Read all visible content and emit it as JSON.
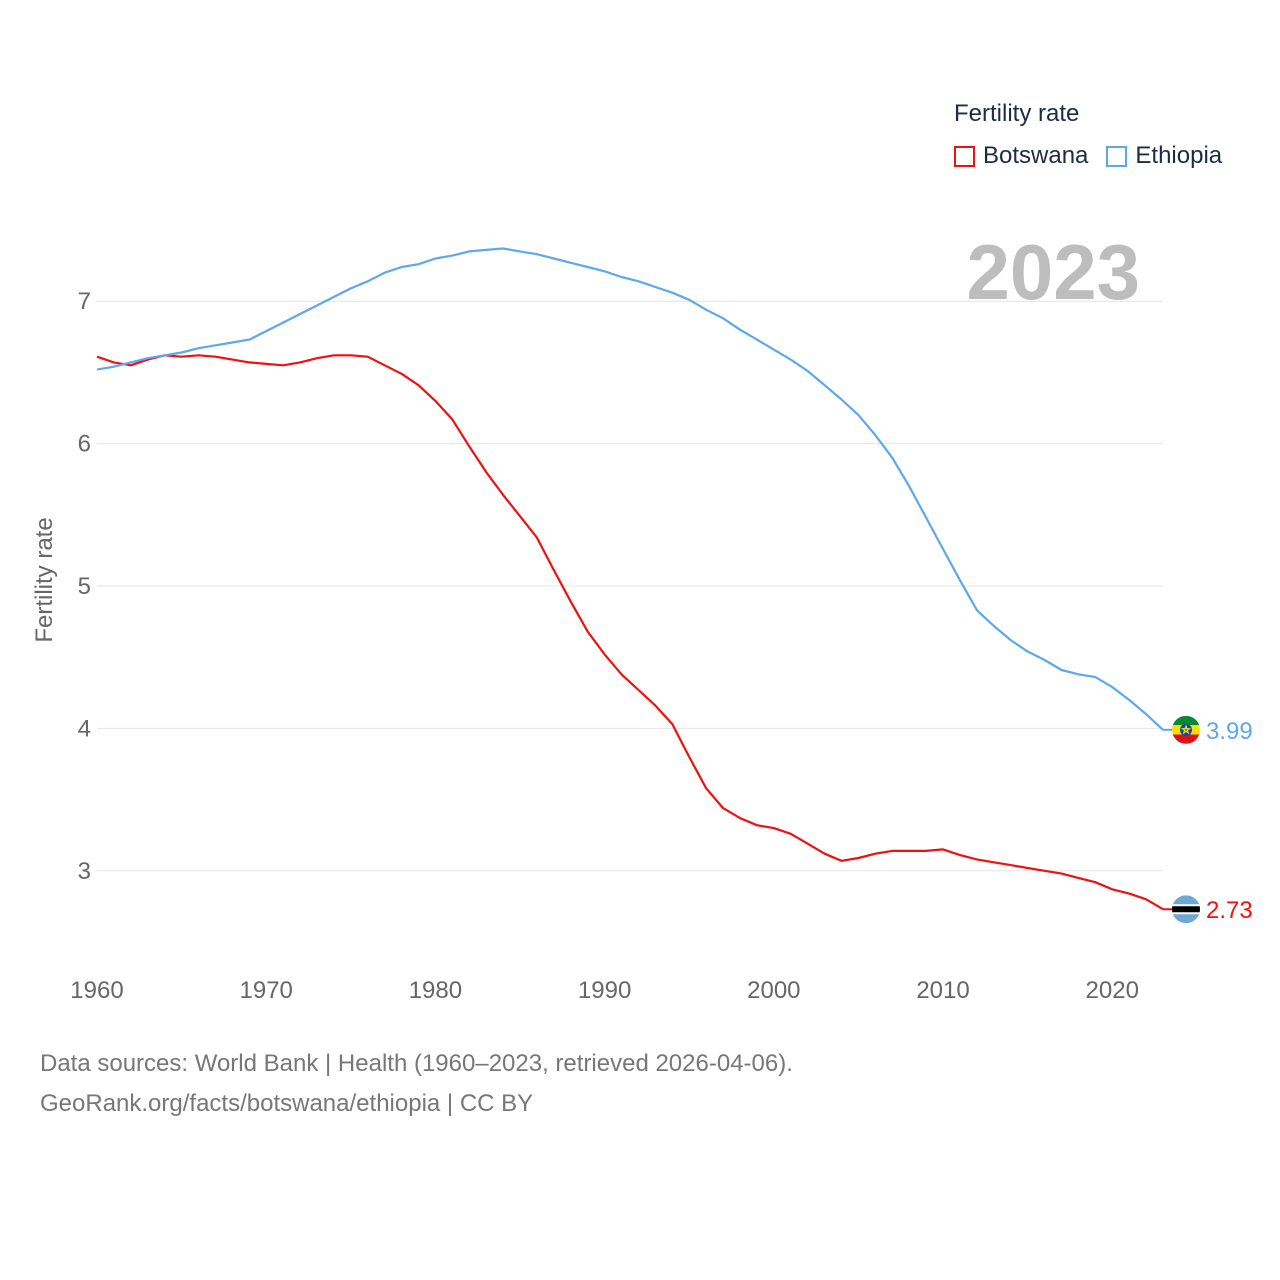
{
  "legend": {
    "title": "Fertility rate",
    "items": [
      {
        "label": "Botswana",
        "color": "#ee1111"
      },
      {
        "label": "Ethiopia",
        "color": "#5ea8ea"
      }
    ]
  },
  "chart_data": {
    "type": "line",
    "year_label": "2023",
    "ylabel": "Fertility rate",
    "xlabel": "",
    "xlim": [
      1960,
      2023
    ],
    "ylim": [
      2.5,
      7.5
    ],
    "x_ticks": [
      "1960",
      "1970",
      "1980",
      "1990",
      "2000",
      "2010",
      "2020"
    ],
    "y_ticks": [
      "3",
      "4",
      "5",
      "6",
      "7"
    ],
    "x": [
      1960,
      1961,
      1962,
      1963,
      1964,
      1965,
      1966,
      1967,
      1968,
      1969,
      1970,
      1971,
      1972,
      1973,
      1974,
      1975,
      1976,
      1977,
      1978,
      1979,
      1980,
      1981,
      1982,
      1983,
      1984,
      1985,
      1986,
      1987,
      1988,
      1989,
      1990,
      1991,
      1992,
      1993,
      1994,
      1995,
      1996,
      1997,
      1998,
      1999,
      2000,
      2001,
      2002,
      2003,
      2004,
      2005,
      2006,
      2007,
      2008,
      2009,
      2010,
      2011,
      2012,
      2013,
      2014,
      2015,
      2016,
      2017,
      2018,
      2019,
      2020,
      2021,
      2022,
      2023
    ],
    "series": [
      {
        "name": "Botswana",
        "color": "#ee1111",
        "end_label": "2.73",
        "values": [
          6.61,
          6.57,
          6.55,
          6.59,
          6.62,
          6.61,
          6.62,
          6.61,
          6.59,
          6.57,
          6.56,
          6.55,
          6.57,
          6.6,
          6.62,
          6.62,
          6.61,
          6.55,
          6.49,
          6.41,
          6.3,
          6.17,
          5.98,
          5.8,
          5.64,
          5.49,
          5.34,
          5.11,
          4.89,
          4.68,
          4.52,
          4.38,
          4.27,
          4.16,
          4.03,
          3.8,
          3.58,
          3.44,
          3.37,
          3.32,
          3.3,
          3.26,
          3.19,
          3.12,
          3.07,
          3.09,
          3.12,
          3.14,
          3.14,
          3.14,
          3.15,
          3.11,
          3.08,
          3.06,
          3.04,
          3.02,
          3.0,
          2.98,
          2.95,
          2.92,
          2.87,
          2.84,
          2.8,
          2.73
        ]
      },
      {
        "name": "Ethiopia",
        "color": "#5ea8ea",
        "end_label": "3.99",
        "values": [
          6.52,
          6.54,
          6.57,
          6.6,
          6.62,
          6.64,
          6.67,
          6.69,
          6.71,
          6.73,
          6.79,
          6.85,
          6.91,
          6.97,
          7.03,
          7.09,
          7.14,
          7.2,
          7.24,
          7.26,
          7.3,
          7.32,
          7.35,
          7.36,
          7.37,
          7.35,
          7.33,
          7.3,
          7.27,
          7.24,
          7.21,
          7.17,
          7.14,
          7.1,
          7.06,
          7.01,
          6.94,
          6.88,
          6.8,
          6.73,
          6.66,
          6.59,
          6.51,
          6.41,
          6.31,
          6.2,
          6.06,
          5.9,
          5.7,
          5.48,
          5.26,
          5.04,
          4.83,
          4.72,
          4.62,
          4.54,
          4.48,
          4.41,
          4.38,
          4.36,
          4.29,
          4.2,
          4.1,
          3.99
        ]
      }
    ]
  },
  "sources": {
    "line1": "Data sources: World Bank | Health (1960–2023, retrieved 2026-04-06).",
    "line2": "GeoRank.org/facts/botswana/ethiopia | CC BY"
  }
}
